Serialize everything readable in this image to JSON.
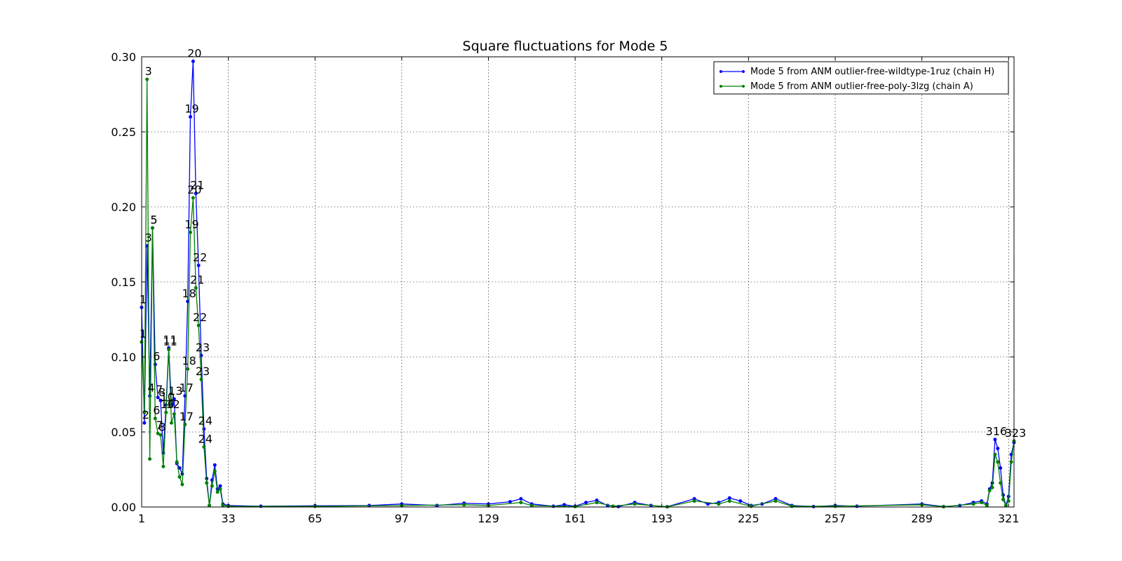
{
  "chart_data": {
    "type": "line",
    "title": "Square fluctuations for Mode 5",
    "xlabel": "",
    "ylabel": "",
    "xlim": [
      1,
      323
    ],
    "ylim": [
      0,
      0.3
    ],
    "x_ticks": [
      "1",
      "33",
      "65",
      "97",
      "129",
      "161",
      "193",
      "225",
      "257",
      "289",
      "321"
    ],
    "y_ticks": [
      "0.00",
      "0.05",
      "0.10",
      "0.15",
      "0.20",
      "0.25",
      "0.30"
    ],
    "grid": true,
    "legend_position": "top-right",
    "series": [
      {
        "name": "Mode 5 from ANM outlier-free-wildtype-1ruz (chain H)",
        "color": "#0000ff",
        "points": [
          [
            1,
            0.133
          ],
          [
            2,
            0.056
          ],
          [
            3,
            0.174
          ],
          [
            4,
            0.074
          ],
          [
            5,
            0.186
          ],
          [
            6,
            0.095
          ],
          [
            7,
            0.073
          ],
          [
            8,
            0.071
          ],
          [
            9,
            0.036
          ],
          [
            10,
            0.068
          ],
          [
            11,
            0.106
          ],
          [
            12,
            0.068
          ],
          [
            13,
            0.072
          ],
          [
            14,
            0.029
          ],
          [
            15,
            0.026
          ],
          [
            16,
            0.022
          ],
          [
            17,
            0.074
          ],
          [
            18,
            0.137
          ],
          [
            19,
            0.26
          ],
          [
            20,
            0.297
          ],
          [
            21,
            0.209
          ],
          [
            22,
            0.161
          ],
          [
            23,
            0.101
          ],
          [
            24,
            0.052
          ],
          [
            25,
            0.019
          ],
          [
            26,
            0.001
          ],
          [
            27,
            0.018
          ],
          [
            28,
            0.028
          ],
          [
            29,
            0.012
          ],
          [
            30,
            0.014
          ],
          [
            31,
            0.002
          ],
          [
            33,
            0.001
          ],
          [
            45,
            0.0005
          ],
          [
            65,
            0.0008
          ],
          [
            85,
            0.001
          ],
          [
            97,
            0.002
          ],
          [
            110,
            0.001
          ],
          [
            120,
            0.0025
          ],
          [
            129,
            0.002
          ],
          [
            137,
            0.0035
          ],
          [
            141,
            0.0055
          ],
          [
            145,
            0.002
          ],
          [
            153,
            0.0005
          ],
          [
            157,
            0.0015
          ],
          [
            161,
            0.0005
          ],
          [
            165,
            0.003
          ],
          [
            169,
            0.0045
          ],
          [
            173,
            0.001
          ],
          [
            177,
            0.0003
          ],
          [
            183,
            0.003
          ],
          [
            189,
            0.001
          ],
          [
            195,
            0.0002
          ],
          [
            205,
            0.0055
          ],
          [
            210,
            0.002
          ],
          [
            214,
            0.003
          ],
          [
            218,
            0.006
          ],
          [
            222,
            0.004
          ],
          [
            226,
            0.001
          ],
          [
            230,
            0.002
          ],
          [
            235,
            0.0055
          ],
          [
            241,
            0.001
          ],
          [
            249,
            0.0003
          ],
          [
            257,
            0.001
          ],
          [
            265,
            0.0005
          ],
          [
            289,
            0.002
          ],
          [
            297,
            0.0003
          ],
          [
            303,
            0.001
          ],
          [
            308,
            0.003
          ],
          [
            311,
            0.004
          ],
          [
            313,
            0.002
          ],
          [
            314,
            0.012
          ],
          [
            315,
            0.016
          ],
          [
            316,
            0.045
          ],
          [
            317,
            0.039
          ],
          [
            318,
            0.026
          ],
          [
            319,
            0.008
          ],
          [
            320,
            0.001
          ],
          [
            321,
            0.007
          ],
          [
            322,
            0.035
          ],
          [
            323,
            0.043
          ]
        ],
        "labels": [
          {
            "x": 1,
            "y": 0.133,
            "text": "1"
          },
          {
            "x": 2,
            "y": 0.056,
            "text": "2"
          },
          {
            "x": 3,
            "y": 0.174,
            "text": "3"
          },
          {
            "x": 5,
            "y": 0.186,
            "text": "5"
          },
          {
            "x": 6,
            "y": 0.095,
            "text": "6"
          },
          {
            "x": 7,
            "y": 0.073,
            "text": "7"
          },
          {
            "x": 8,
            "y": 0.071,
            "text": "8"
          },
          {
            "x": 10,
            "y": 0.068,
            "text": "10"
          },
          {
            "x": 11,
            "y": 0.106,
            "text": "11"
          },
          {
            "x": 13,
            "y": 0.072,
            "text": "13"
          },
          {
            "x": 17,
            "y": 0.074,
            "text": "17"
          },
          {
            "x": 18,
            "y": 0.137,
            "text": "18"
          },
          {
            "x": 19,
            "y": 0.26,
            "text": "19"
          },
          {
            "x": 20,
            "y": 0.297,
            "text": "20"
          },
          {
            "x": 21,
            "y": 0.209,
            "text": "21"
          },
          {
            "x": 22,
            "y": 0.161,
            "text": "22"
          },
          {
            "x": 23,
            "y": 0.101,
            "text": "23"
          },
          {
            "x": 24,
            "y": 0.052,
            "text": "24"
          },
          {
            "x": 316,
            "y": 0.045,
            "text": "316"
          }
        ]
      },
      {
        "name": "Mode 5 from ANM outlier-free-poly-3lzg (chain A)",
        "color": "#008000",
        "points": [
          [
            1,
            0.11
          ],
          [
            2,
            0.063
          ],
          [
            3,
            0.285
          ],
          [
            4,
            0.032
          ],
          [
            5,
            0.186
          ],
          [
            6,
            0.059
          ],
          [
            7,
            0.049
          ],
          [
            8,
            0.048
          ],
          [
            9,
            0.027
          ],
          [
            10,
            0.063
          ],
          [
            11,
            0.105
          ],
          [
            12,
            0.056
          ],
          [
            13,
            0.062
          ],
          [
            14,
            0.03
          ],
          [
            15,
            0.02
          ],
          [
            16,
            0.015
          ],
          [
            17,
            0.055
          ],
          [
            18,
            0.092
          ],
          [
            19,
            0.183
          ],
          [
            20,
            0.206
          ],
          [
            21,
            0.146
          ],
          [
            22,
            0.121
          ],
          [
            23,
            0.085
          ],
          [
            24,
            0.04
          ],
          [
            25,
            0.016
          ],
          [
            26,
            0.001
          ],
          [
            27,
            0.014
          ],
          [
            28,
            0.024
          ],
          [
            29,
            0.01
          ],
          [
            30,
            0.012
          ],
          [
            31,
            0.001
          ],
          [
            33,
            0.0005
          ],
          [
            65,
            0.0004
          ],
          [
            97,
            0.001
          ],
          [
            120,
            0.0015
          ],
          [
            129,
            0.001
          ],
          [
            141,
            0.003
          ],
          [
            145,
            0.001
          ],
          [
            161,
            0.0003
          ],
          [
            169,
            0.003
          ],
          [
            175,
            0.0005
          ],
          [
            183,
            0.002
          ],
          [
            195,
            0.0001
          ],
          [
            205,
            0.004
          ],
          [
            214,
            0.002
          ],
          [
            218,
            0.004
          ],
          [
            226,
            0.0005
          ],
          [
            235,
            0.004
          ],
          [
            241,
            0.0005
          ],
          [
            257,
            0.0005
          ],
          [
            289,
            0.0015
          ],
          [
            297,
            0.0002
          ],
          [
            308,
            0.002
          ],
          [
            311,
            0.003
          ],
          [
            313,
            0.001
          ],
          [
            314,
            0.011
          ],
          [
            315,
            0.013
          ],
          [
            316,
            0.035
          ],
          [
            317,
            0.03
          ],
          [
            318,
            0.016
          ],
          [
            319,
            0.005
          ],
          [
            320,
            0.001
          ],
          [
            321,
            0.004
          ],
          [
            322,
            0.03
          ],
          [
            323,
            0.044
          ]
        ],
        "labels": [
          {
            "x": 1,
            "y": 0.11,
            "text": "1"
          },
          {
            "x": 3,
            "y": 0.285,
            "text": "3"
          },
          {
            "x": 4,
            "y": 0.074,
            "text": "4"
          },
          {
            "x": 5,
            "y": 0.186,
            "text": "5"
          },
          {
            "x": 6,
            "y": 0.059,
            "text": "6"
          },
          {
            "x": 7,
            "y": 0.049,
            "text": "7"
          },
          {
            "x": 8,
            "y": 0.048,
            "text": "8"
          },
          {
            "x": 10,
            "y": 0.063,
            "text": "10"
          },
          {
            "x": 11,
            "y": 0.105,
            "text": "11"
          },
          {
            "x": 12,
            "y": 0.063,
            "text": "12"
          },
          {
            "x": 17,
            "y": 0.055,
            "text": "17"
          },
          {
            "x": 18,
            "y": 0.092,
            "text": "18"
          },
          {
            "x": 19,
            "y": 0.183,
            "text": "19"
          },
          {
            "x": 20,
            "y": 0.206,
            "text": "20"
          },
          {
            "x": 21,
            "y": 0.146,
            "text": "21"
          },
          {
            "x": 22,
            "y": 0.121,
            "text": "22"
          },
          {
            "x": 23,
            "y": 0.085,
            "text": "23"
          },
          {
            "x": 24,
            "y": 0.04,
            "text": "24"
          },
          {
            "x": 323,
            "y": 0.044,
            "text": "323"
          }
        ]
      }
    ]
  }
}
